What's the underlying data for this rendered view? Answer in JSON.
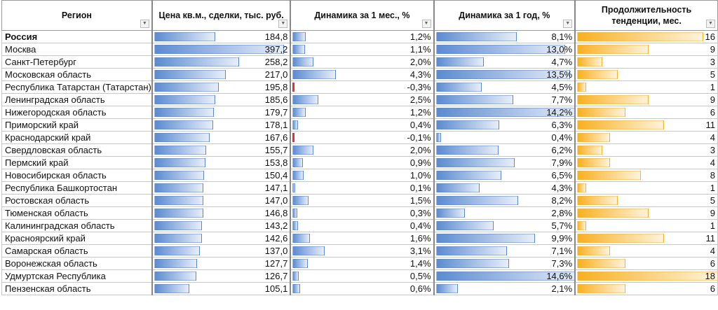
{
  "headers": {
    "region": "Регион",
    "price": "Цена кв.м., сделки, тыс. руб.",
    "month": "Динамика за 1 мес., %",
    "year": "Динамика за 1 год, %",
    "duration": "Продолжительность тенденции, мес.",
    "filter_icon": "dropdown-arrow"
  },
  "colors": {
    "bar_blue": "#5b8bd0",
    "bar_orange": "#f8b020",
    "bar_negative": "#e03030"
  },
  "rows": [
    {
      "region": "Россия",
      "price": "184,8",
      "month": "1,2%",
      "year": "8,1%",
      "duration": "16",
      "bold": true
    },
    {
      "region": "Москва",
      "price": "397,2",
      "month": "1,1%",
      "year": "13,0%",
      "duration": "9"
    },
    {
      "region": "Санкт-Петербург",
      "price": "258,2",
      "month": "2,0%",
      "year": "4,7%",
      "duration": "3"
    },
    {
      "region": "Московская область",
      "price": "217,0",
      "month": "4,3%",
      "year": "13,5%",
      "duration": "5"
    },
    {
      "region": "Республика Татарстан (Татарстан)",
      "price": "195,8",
      "month": "-0,3%",
      "year": "4,5%",
      "duration": "1"
    },
    {
      "region": "Ленинградская область",
      "price": "185,6",
      "month": "2,5%",
      "year": "7,7%",
      "duration": "9"
    },
    {
      "region": "Нижегородская область",
      "price": "179,7",
      "month": "1,2%",
      "year": "14,2%",
      "duration": "6"
    },
    {
      "region": "Приморский край",
      "price": "178,1",
      "month": "0,4%",
      "year": "6,3%",
      "duration": "11"
    },
    {
      "region": "Краснодарский край",
      "price": "167,6",
      "month": "-0,1%",
      "year": "0,4%",
      "duration": "4"
    },
    {
      "region": "Свердловская область",
      "price": "155,7",
      "month": "2,0%",
      "year": "6,2%",
      "duration": "3"
    },
    {
      "region": "Пермский край",
      "price": "153,8",
      "month": "0,9%",
      "year": "7,9%",
      "duration": "4"
    },
    {
      "region": "Новосибирская область",
      "price": "150,4",
      "month": "1,0%",
      "year": "6,5%",
      "duration": "8"
    },
    {
      "region": "Республика Башкортостан",
      "price": "147,1",
      "month": "0,1%",
      "year": "4,3%",
      "duration": "1"
    },
    {
      "region": "Ростовская область",
      "price": "147,0",
      "month": "1,5%",
      "year": "8,2%",
      "duration": "5"
    },
    {
      "region": "Тюменская область",
      "price": "146,8",
      "month": "0,3%",
      "year": "2,8%",
      "duration": "9"
    },
    {
      "region": "Калининградская область",
      "price": "143,2",
      "month": "0,4%",
      "year": "5,7%",
      "duration": "1"
    },
    {
      "region": "Красноярский край",
      "price": "142,6",
      "month": "1,6%",
      "year": "9,9%",
      "duration": "11"
    },
    {
      "region": "Самарская область",
      "price": "137,0",
      "month": "3,1%",
      "year": "7,1%",
      "duration": "4"
    },
    {
      "region": "Воронежская область",
      "price": "127,7",
      "month": "1,4%",
      "year": "7,3%",
      "duration": "6"
    },
    {
      "region": "Удмуртская Республика",
      "price": "126,7",
      "month": "0,5%",
      "year": "14,6%",
      "duration": "18"
    },
    {
      "region": "Пензенская область",
      "price": "105,1",
      "month": "0,6%",
      "year": "2,1%",
      "duration": "6"
    }
  ]
}
